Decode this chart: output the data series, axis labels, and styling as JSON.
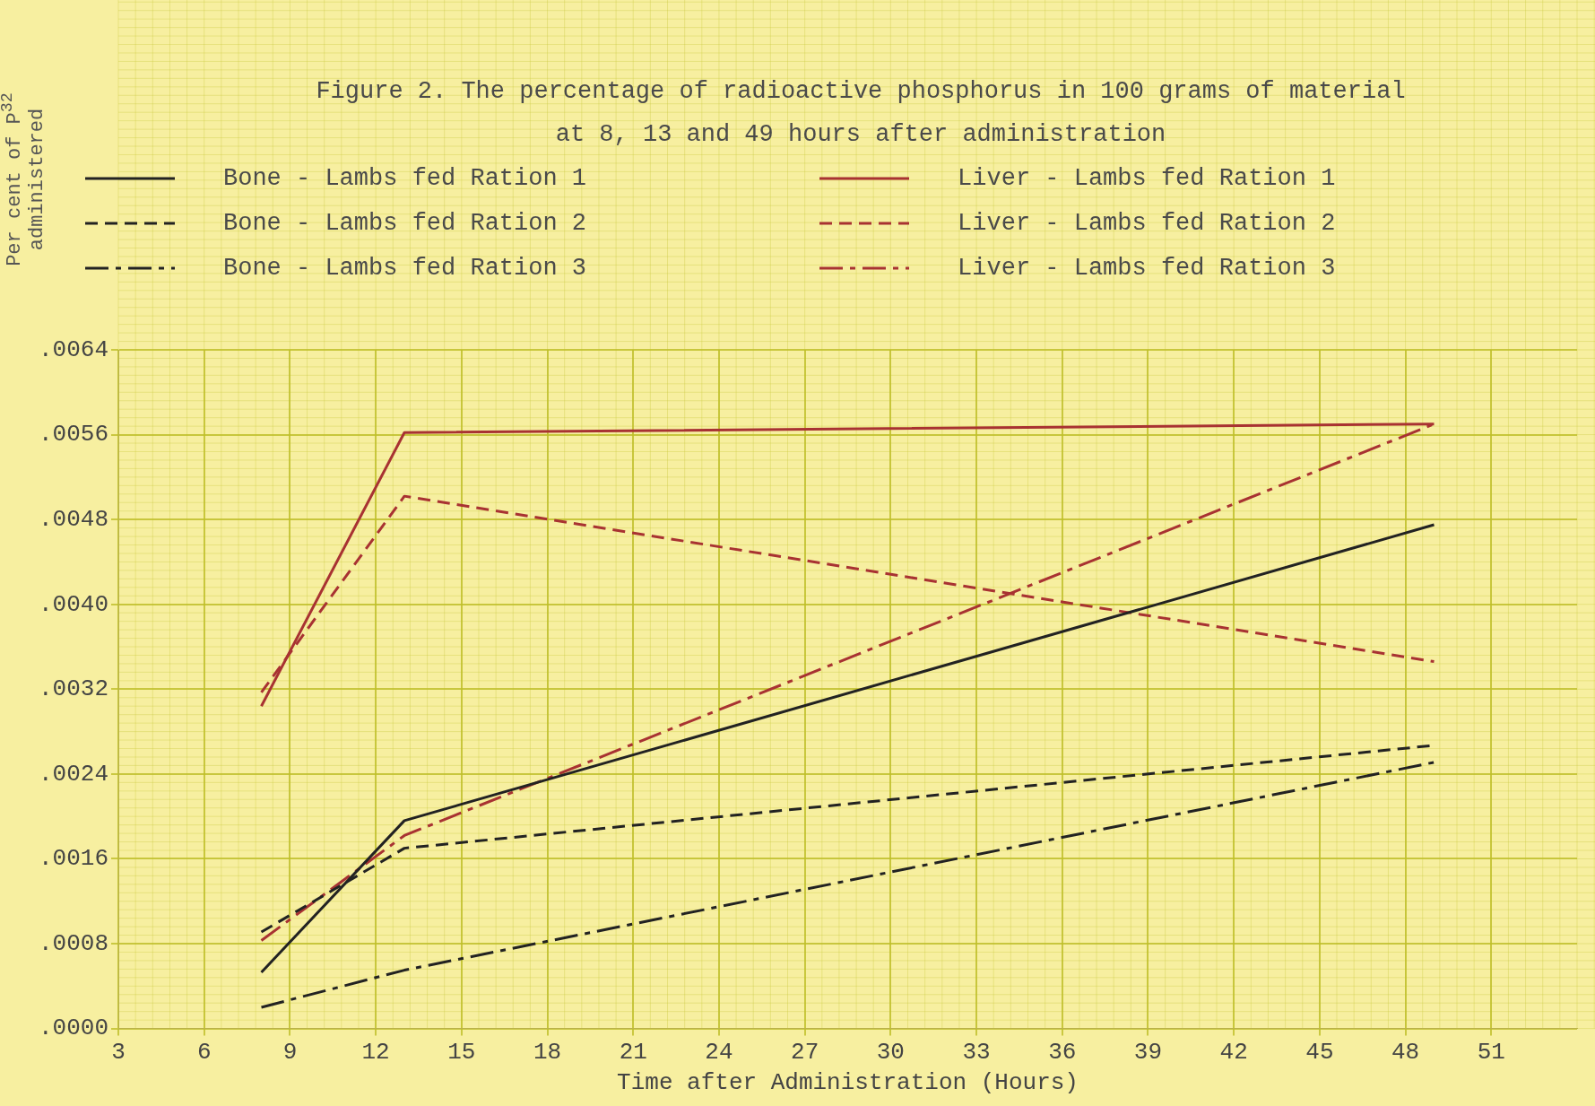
{
  "chart_data": {
    "type": "line",
    "title": "Figure 2.  The percentage of radioactive phosphorus in 100 grams of material at 8, 13 and 49 hours after administration",
    "xlabel": "Time after Administration (Hours)",
    "ylabel": "Per cent of P$^{32}$ administered",
    "x": [
      8,
      13,
      49
    ],
    "series": [
      {
        "name": "Bone - Lambs fed Ration 1",
        "color": "#222222",
        "line_style": "solid",
        "values": [
          0.00053,
          0.00196,
          0.00475
        ]
      },
      {
        "name": "Bone - Lambs fed Ration 2",
        "color": "#222222",
        "line_style": "dashed",
        "values": [
          0.00091,
          0.0017,
          0.00267
        ]
      },
      {
        "name": "Bone - Lambs fed Ration 3",
        "color": "#222222",
        "line_style": "dashdot",
        "values": [
          0.0002,
          0.00055,
          0.00251
        ]
      },
      {
        "name": "Liver - Lambs fed Ration 1",
        "color": "#a83232",
        "line_style": "solid",
        "values": [
          0.00304,
          0.00562,
          0.0057
        ]
      },
      {
        "name": "Liver - Lambs fed Ration 2",
        "color": "#a83232",
        "line_style": "dashed",
        "values": [
          0.00317,
          0.00502,
          0.00346
        ]
      },
      {
        "name": "Liver - Lambs fed Ration 3",
        "color": "#a83232",
        "line_style": "dashdot",
        "values": [
          0.00083,
          0.00182,
          0.0057
        ]
      }
    ],
    "xlim": [
      3,
      54
    ],
    "xticks": [
      3,
      6,
      9,
      12,
      15,
      18,
      21,
      24,
      27,
      30,
      33,
      36,
      39,
      42,
      45,
      48,
      51
    ],
    "ylim": [
      0,
      0.0064
    ],
    "yticks": [
      {
        "value": 0,
        "label": ".0000"
      },
      {
        "value": 0.0008,
        "label": ".0008"
      },
      {
        "value": 0.0016,
        "label": ".0016"
      },
      {
        "value": 0.0024,
        "label": ".0024"
      },
      {
        "value": 0.0032,
        "label": ".0032"
      },
      {
        "value": 0.004,
        "label": ".0040"
      },
      {
        "value": 0.0048,
        "label": ".0048"
      },
      {
        "value": 0.0056,
        "label": ".0056"
      },
      {
        "value": 0.0064,
        "label": ".0064"
      }
    ],
    "grid": true,
    "legend": "top",
    "marker": "none"
  }
}
